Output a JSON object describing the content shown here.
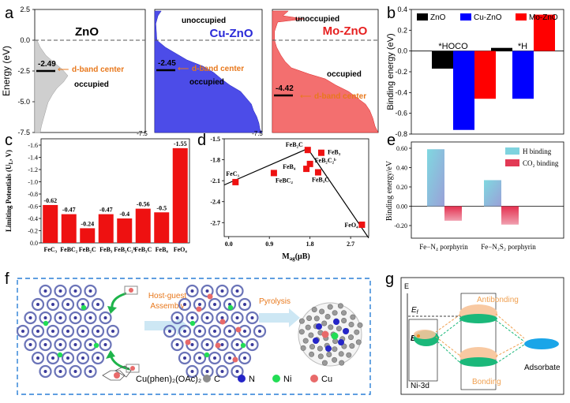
{
  "figure": {
    "panel_labels": [
      "a",
      "b",
      "c",
      "d",
      "e",
      "f",
      "g"
    ]
  },
  "panel_a": {
    "ylabel": "Energy (eV)",
    "yticks": [
      "2.5",
      "0.0",
      "-2.5",
      "-5.0",
      "-7.5"
    ],
    "subpanels": [
      {
        "title": "ZnO",
        "center": "-2.49",
        "d_band_label": "d-band center",
        "occupied": "occupied",
        "unoccupied": "",
        "color": "#c9c9c9",
        "title_color": "#000000"
      },
      {
        "title": "Cu-ZnO",
        "center": "-2.45",
        "d_band_label": "d-band center",
        "occupied": "occupied",
        "unoccupied": "unoccupied",
        "color": "#4a4ae6",
        "title_color": "#2a2ad8"
      },
      {
        "title": "Mo-ZnO",
        "center": "-4.42",
        "d_band_label": "d-band center",
        "occupied": "occupied",
        "unoccupied": "unoccupied",
        "color": "#f26b6b",
        "title_color": "#e62020"
      }
    ],
    "sub_bottom_ticks": [
      "-7.5",
      "-7.5"
    ]
  },
  "chart_data": [
    {
      "panel": "b",
      "type": "bar",
      "ylabel": "Binding energy (eV)",
      "categories": [
        "*HOCO",
        "*H"
      ],
      "series": [
        {
          "name": "ZnO",
          "color": "#000000",
          "values": [
            -0.17,
            0.03
          ]
        },
        {
          "name": "Cu-ZnO",
          "color": "#0000ff",
          "values": [
            -0.76,
            -0.46
          ]
        },
        {
          "name": "Mo-ZnO",
          "color": "#ff0000",
          "values": [
            -0.46,
            0.35
          ]
        }
      ],
      "ylim": [
        -0.8,
        0.4
      ],
      "yticks": [
        "0.4",
        "0.2",
        "0.0",
        "-0.2",
        "-0.4",
        "-0.6",
        "-0.8"
      ]
    },
    {
      "panel": "c",
      "type": "bar",
      "ylabel": "Limiting Potentials (U_L, V)",
      "categories": [
        "FeC3",
        "FeBC2",
        "FeB2C",
        "FeB3",
        "FeB2C2^b",
        "FeB3C",
        "FeB4",
        "FeO4"
      ],
      "category_labels": [
        "FeC₃",
        "FeBC₂",
        "FeB₂C",
        "FeB₃",
        "FeB₂C₂ᵇ",
        "FeB₃C",
        "FeB₄",
        "FeO₄"
      ],
      "values": [
        -0.62,
        -0.47,
        -0.24,
        -0.47,
        -0.4,
        -0.56,
        -0.5,
        -1.55
      ],
      "value_labels": [
        "-0.62",
        "-0.47",
        "-0.24",
        "-0.47",
        "-0.4",
        "-0.56",
        "-0.5",
        "-1.55"
      ],
      "ylim": [
        0,
        -1.6
      ],
      "yticks": [
        "-1.6",
        "-1.4",
        "-1.2",
        "-1.0",
        "-0.8",
        "-0.6",
        "-0.4",
        "-0.2",
        "0.0"
      ],
      "color": "#ee1111"
    },
    {
      "panel": "d",
      "type": "scatter",
      "xlabel": "M_ag(μB)",
      "ylim": [
        -2.9,
        -1.5
      ],
      "xlim": [
        -0.1,
        3.1
      ],
      "yticks": [
        "-1.5",
        "-1.8",
        "-2.1",
        "-2.4",
        "-2.7"
      ],
      "xticks": [
        "0.0",
        "0.9",
        "1.8",
        "2.7"
      ],
      "points": [
        {
          "name": "FeC3",
          "label": "FeC₃",
          "x": 0.15,
          "y": -2.12
        },
        {
          "name": "FeBC2",
          "label": "FeBC₂",
          "x": 1.0,
          "y": -1.99
        },
        {
          "name": "FeB4",
          "label": "FeB₄",
          "x": 1.72,
          "y": -1.93
        },
        {
          "name": "FeB2C",
          "label": "FeB₂C",
          "x": 1.75,
          "y": -1.66
        },
        {
          "name": "FeB2C2^b",
          "label": "FeB₂C₂ᵇ",
          "x": 1.8,
          "y": -1.86
        },
        {
          "name": "FeB3",
          "label": "FeB₃",
          "x": 2.05,
          "y": -1.7
        },
        {
          "name": "FeB3C",
          "label": "FeB₃C",
          "x": 1.98,
          "y": -1.98
        },
        {
          "name": "FeO4",
          "label": "FeO₄",
          "x": 2.95,
          "y": -2.73
        }
      ],
      "trend_line": [
        {
          "x": -0.1,
          "y": -2.16
        },
        {
          "x": 1.75,
          "y": -1.64
        },
        {
          "x": 3.1,
          "y": -2.92
        }
      ]
    },
    {
      "panel": "e",
      "type": "bar",
      "ylabel": "Binding energy/eV",
      "categories": [
        "Fe–N4 porphyrin",
        "Fe–N2S2 porphyrin"
      ],
      "category_labels": [
        "Fe−N₄ porphyrin",
        "Fe−N₂S₂ porphyrin"
      ],
      "series": [
        {
          "name": "H binding",
          "color": "#7fd3df",
          "values": [
            0.59,
            0.27
          ]
        },
        {
          "name": "CO2 binding",
          "color": "#e23a55",
          "values": [
            -0.15,
            -0.19
          ]
        }
      ],
      "legend_labels": [
        "H binding",
        "CO₂ binding"
      ],
      "ylim": [
        -0.2,
        0.6
      ],
      "yticks": [
        "0.60",
        "0.40",
        "0.20",
        "0.00",
        "-0.20"
      ]
    }
  ],
  "panel_f": {
    "step1": "Host-guest\nAssembly",
    "step1_lines": [
      "Host-guest",
      "Assembly"
    ],
    "step2": "Pyrolysis",
    "legend_molecule": "Cu(phen)2(OAc)2",
    "legend_molecule_display": "Cu(phen)₂(OAc)₂",
    "legend_items": [
      {
        "label": "C",
        "color": "#8d8d8d"
      },
      {
        "label": "N",
        "color": "#2424c8"
      },
      {
        "label": "Ni",
        "color": "#22dd55"
      },
      {
        "label": "Cu",
        "color": "#e86a6a"
      }
    ]
  },
  "panel_g": {
    "axis_label": "E",
    "ef": "E_f",
    "ed": "E_d",
    "antibonding": "Antibonding",
    "bonding": "Bonding",
    "left_label": "Ni-3d",
    "right_label": "Adsorbate",
    "antibonding_color": "#f0a050",
    "bonding_color": "#1bb87a",
    "adsorbate_color": "#1aa5e8"
  }
}
